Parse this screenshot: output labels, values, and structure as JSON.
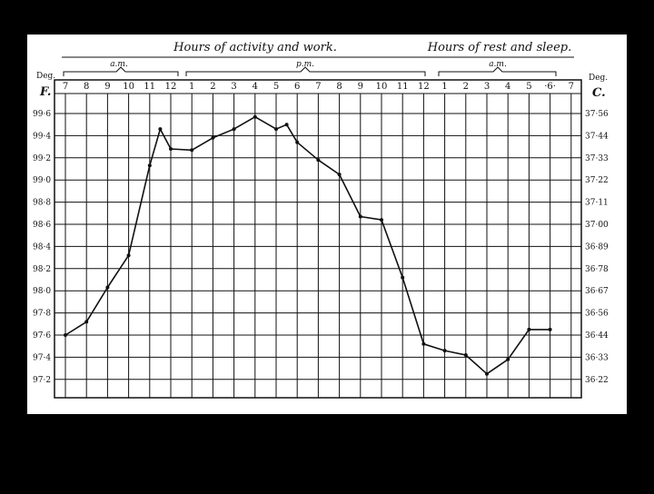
{
  "chart_data": {
    "type": "line",
    "title": "",
    "header_activity": "Hours of activity and work.",
    "header_rest": "Hours of rest and sleep.",
    "period_labels": [
      "a.m.",
      "p.m.",
      "a.m."
    ],
    "left_axis": {
      "top_label": "Deg.",
      "unit": "F."
    },
    "right_axis": {
      "top_label": "Deg.",
      "unit": "C."
    },
    "x_tick_labels": [
      "7",
      "8",
      "9",
      "10",
      "11",
      "12",
      "1",
      "2",
      "3",
      "4",
      "5",
      "6",
      "7",
      "8",
      "9",
      "10",
      "11",
      "12",
      "1",
      "2",
      "3",
      "4",
      "5",
      "·6·",
      "7"
    ],
    "y_ticks_f": [
      "99·6",
      "99·4",
      "99·2",
      "99·0",
      "98·8",
      "98·6",
      "98·4",
      "98·2",
      "98·0",
      "97·8",
      "97·6",
      "97·4",
      "97·2"
    ],
    "y_ticks_c": [
      "37·56",
      "37·44",
      "37·33",
      "37·22",
      "37·11",
      "37·00",
      "36·89",
      "36·78",
      "36·67",
      "36·56",
      "36·44",
      "36·33",
      "36·22"
    ],
    "ylim_f": [
      97.1,
      99.7
    ],
    "grid": true,
    "series": [
      {
        "x_hours": [
          0,
          1,
          2,
          3,
          4,
          4.5,
          5,
          6,
          7,
          8,
          9,
          10,
          10.5,
          11,
          12,
          13,
          14,
          15,
          16,
          17,
          18,
          19,
          20,
          21,
          22,
          23
        ],
        "values": [
          97.6,
          97.72,
          98.03,
          98.32,
          99.13,
          99.46,
          99.28,
          99.27,
          99.38,
          99.46,
          99.57,
          99.46,
          99.5,
          99.34,
          99.18,
          99.05,
          98.67,
          98.64,
          98.12,
          97.52,
          97.46,
          97.42,
          97.25,
          97.38,
          97.65,
          97.65
        ]
      }
    ]
  }
}
